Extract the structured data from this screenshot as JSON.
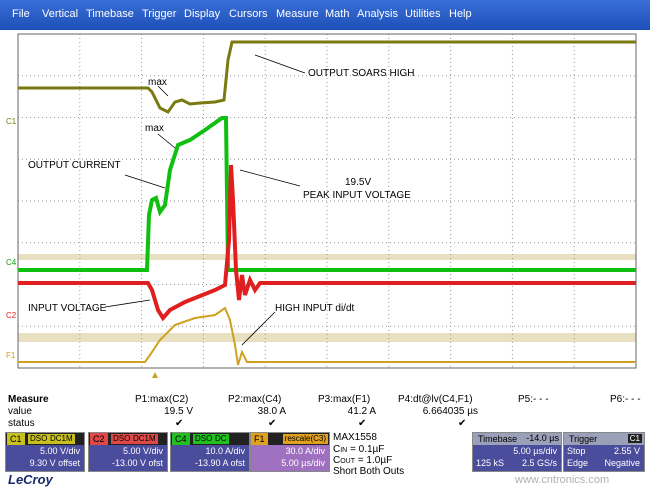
{
  "menu": [
    "File",
    "Vertical",
    "Timebase",
    "Trigger",
    "Display",
    "Cursors",
    "Measure",
    "Math",
    "Analysis",
    "Utilities",
    "Help"
  ],
  "trace_labels": [
    "C1",
    "C4",
    "C2",
    "F1"
  ],
  "annotations": [
    "max",
    "max",
    "OUTPUT SOARS HIGH",
    "OUTPUT CURRENT",
    "19.5V",
    "PEAK INPUT VOLTAGE",
    "INPUT VOLTAGE",
    "HIGH INPUT di/dt"
  ],
  "measure": {
    "title": "Measure",
    "row_labels": [
      "value",
      "status"
    ],
    "params": [
      {
        "name": "P1:max(C2)",
        "value": "19.5 V",
        "status": "✔"
      },
      {
        "name": "P2:max(C4)",
        "value": "38.0 A",
        "status": "✔"
      },
      {
        "name": "P3:max(F1)",
        "value": "41.2 A",
        "status": "✔"
      },
      {
        "name": "P4:dt@lv(C4,F1)",
        "value": "6.664035 µs",
        "status": "✔"
      },
      {
        "name": "P5:- - -"
      },
      {
        "name": "P6:- - -"
      }
    ]
  },
  "channels": [
    {
      "label": "C1",
      "tags": [
        "DSO",
        "DC1M"
      ],
      "lines": [
        "5.00 V/div",
        "9.30 V offset"
      ]
    },
    {
      "label": "C2",
      "tags": [
        "DSO",
        "DC1M"
      ],
      "lines": [
        "5.00 V/div",
        "-13.00 V ofst"
      ]
    },
    {
      "label": "C4",
      "tags": [
        "DSO",
        "DC"
      ],
      "lines": [
        "10.0 A/div",
        "-13.90 A ofst"
      ]
    },
    {
      "label": "F1",
      "tags": [
        "rescale(C3)"
      ],
      "lines": [
        "30.0 A/div",
        "5.00 µs/div"
      ]
    }
  ],
  "notes": {
    "title": "MAX1558",
    "cin": {
      "c": "C",
      "sub": "IN",
      "rest": " = 0.1µF"
    },
    "cout": {
      "c": "C",
      "sub": "OUT",
      "rest": " = 1.0µF"
    },
    "short": "Short Both Outs"
  },
  "timebase": {
    "title": "Timebase",
    "offset": "-14.0 µs",
    "per_div": "5.00 µs/div",
    "samples": "125 kS",
    "rate": "2.5 GS/s"
  },
  "trigger": {
    "title": "Trigger",
    "source": "C1",
    "rows": [
      [
        "Stop",
        "2.55 V"
      ],
      [
        "Edge",
        "Negative"
      ]
    ]
  },
  "logo": "LeCroy",
  "watermark": "www.cntronics.com"
}
